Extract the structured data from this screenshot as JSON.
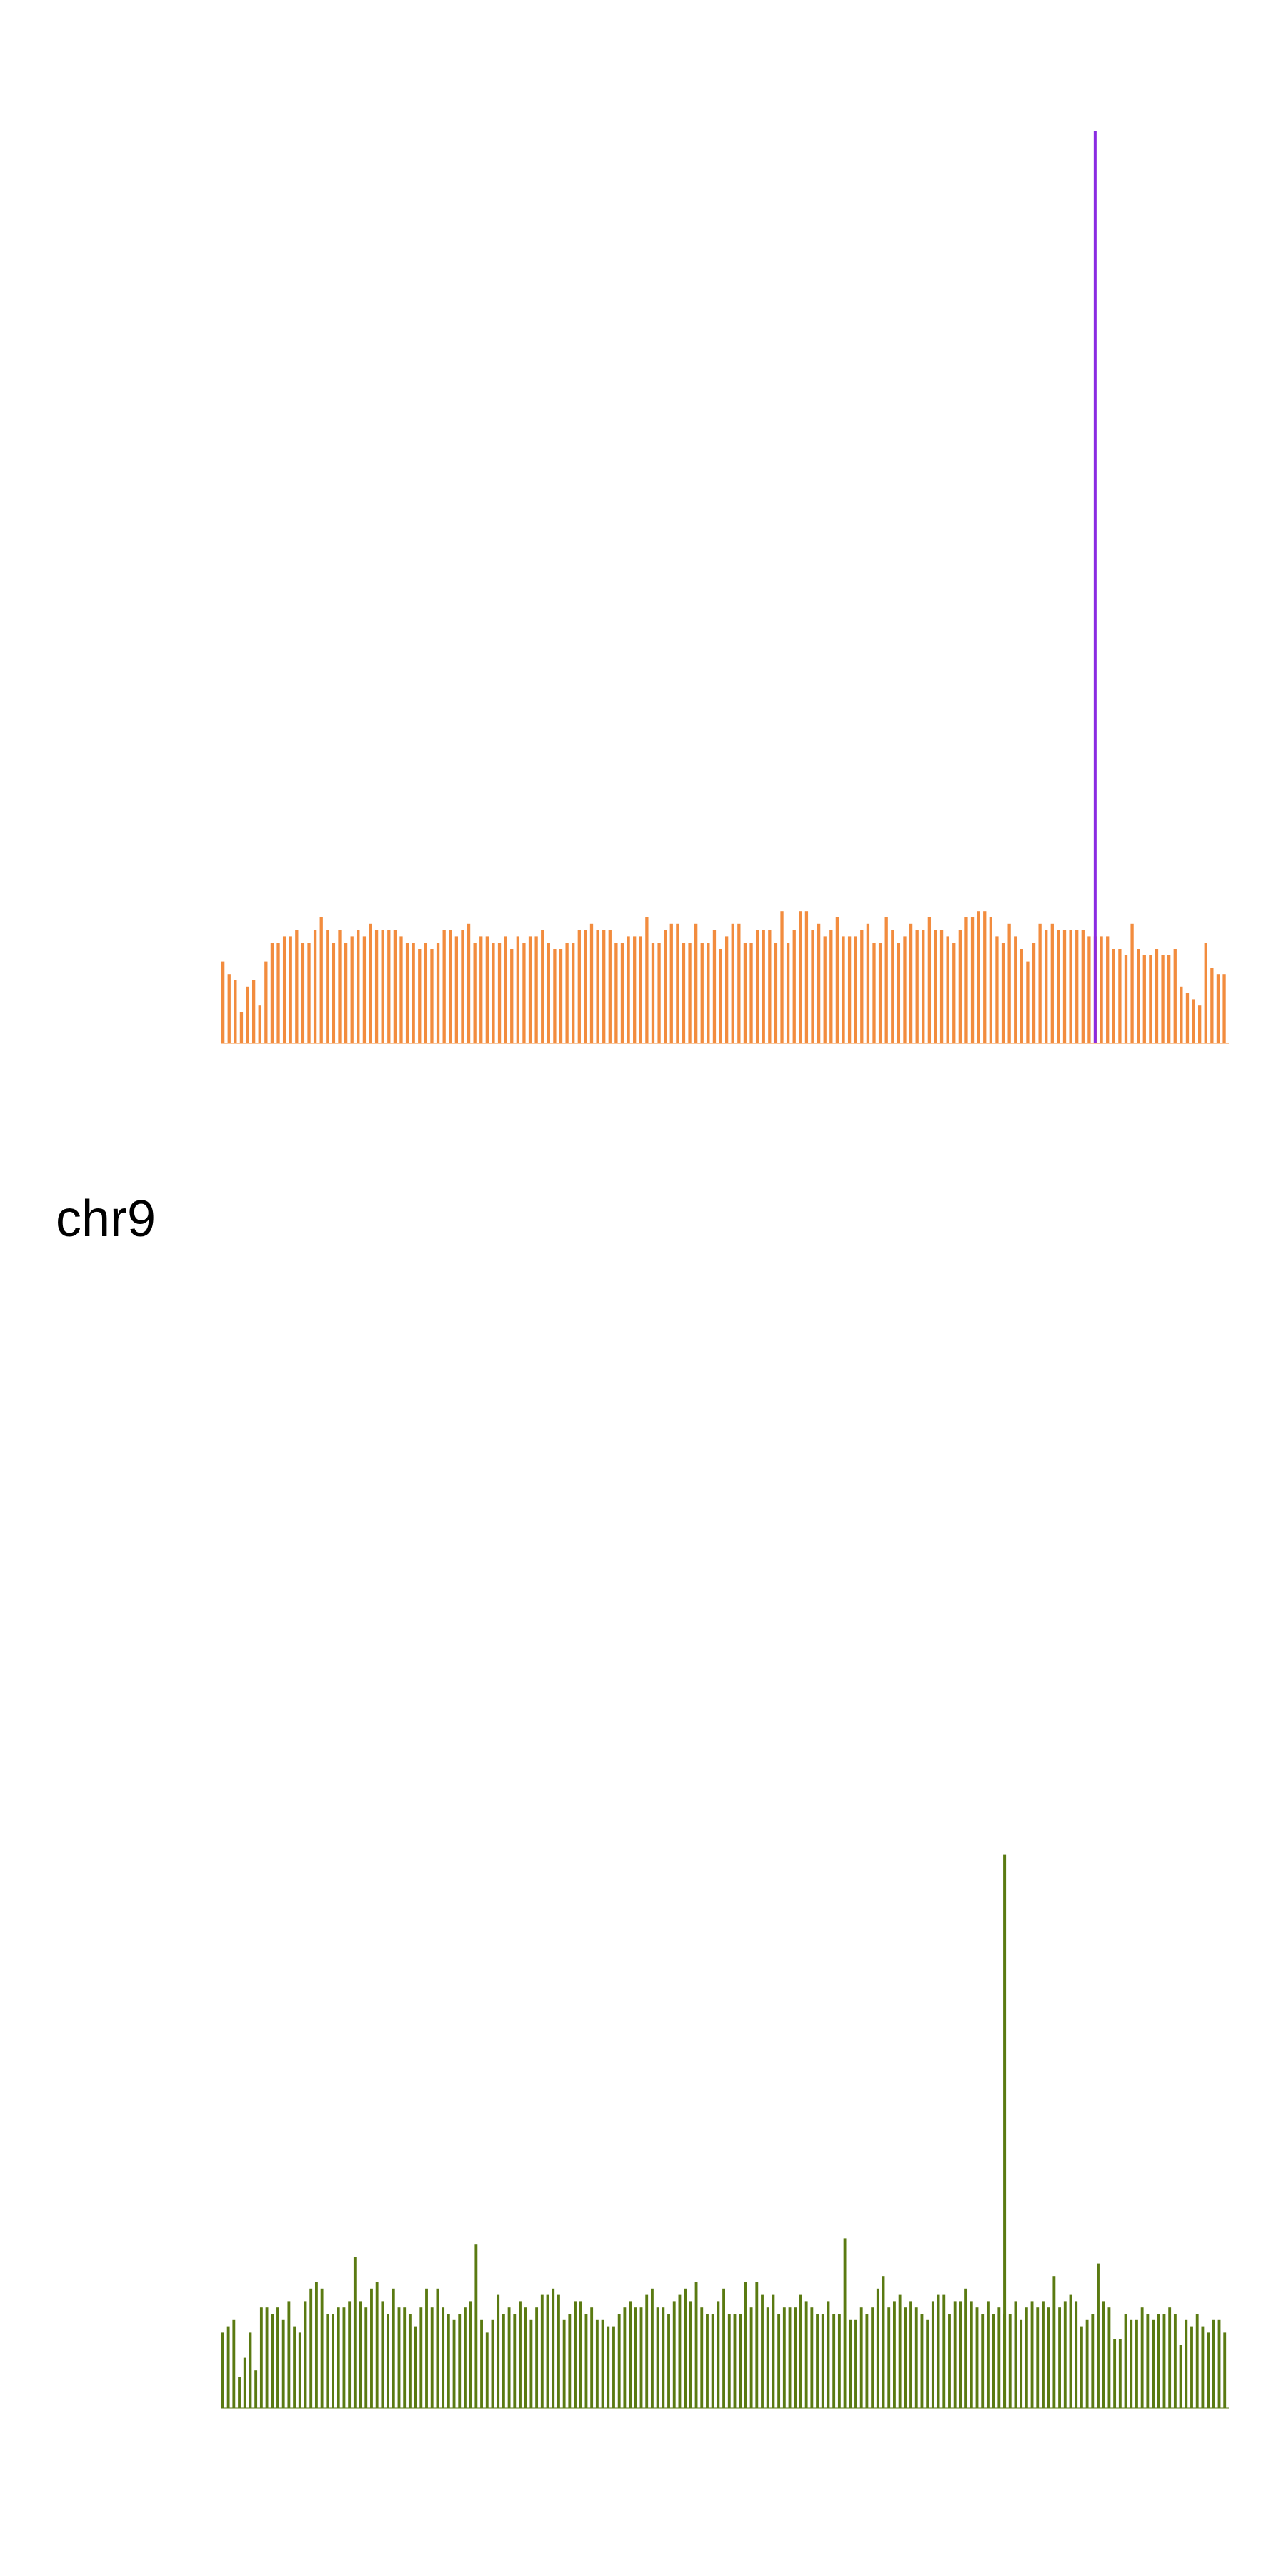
{
  "chart_data": [
    {
      "type": "bar",
      "label": "chr9",
      "series": [
        {
          "color": "#f28c3e",
          "values": [
            13,
            11,
            10,
            5,
            9,
            10,
            6,
            13,
            16,
            16,
            17,
            17,
            18,
            16,
            16,
            18,
            20,
            18,
            16,
            18,
            16,
            17,
            18,
            17,
            19,
            18,
            18,
            18,
            18,
            17,
            16,
            16,
            15,
            16,
            15,
            16,
            18,
            18,
            17,
            18,
            19,
            16,
            17,
            17,
            16,
            16,
            17,
            15,
            17,
            16,
            17,
            17,
            18,
            16,
            15,
            15,
            16,
            16,
            18,
            18,
            19,
            18,
            18,
            18,
            16,
            16,
            17,
            17,
            17,
            20,
            16,
            16,
            18,
            19,
            19,
            16,
            16,
            19,
            16,
            16,
            18,
            15,
            17,
            19,
            19,
            16,
            16,
            18,
            18,
            18,
            16,
            21,
            16,
            18,
            21,
            21,
            18,
            19,
            17,
            18,
            20,
            17,
            17,
            17,
            18,
            19,
            16,
            16,
            20,
            18,
            16,
            17,
            19,
            18,
            18,
            20,
            18,
            18,
            17,
            16,
            18,
            20,
            20,
            21,
            21,
            20,
            17,
            16,
            19,
            17,
            15,
            13,
            16,
            19,
            18,
            19,
            18,
            18,
            18,
            18,
            18,
            17,
            17,
            17,
            17,
            15,
            15,
            14,
            19,
            15,
            14,
            14,
            15,
            14,
            14,
            15,
            9,
            8,
            7,
            6,
            16,
            12,
            11,
            11
          ],
          "spike": {
            "index": 142,
            "value": 145,
            "color": "#8a2be2"
          }
        },
        {
          "color": "#5a7a12",
          "values": [
            12,
            13,
            14,
            5,
            8,
            12,
            6,
            16,
            16,
            15,
            16,
            14,
            17,
            13,
            12,
            17,
            19,
            20,
            19,
            15,
            15,
            16,
            16,
            17,
            24,
            17,
            16,
            19,
            20,
            17,
            15,
            19,
            16,
            16,
            15,
            13,
            16,
            19,
            16,
            19,
            16,
            15,
            14,
            15,
            16,
            17,
            26,
            14,
            12,
            14,
            18,
            15,
            16,
            15,
            17,
            16,
            14,
            16,
            18,
            18,
            19,
            18,
            14,
            15,
            17,
            17,
            15,
            16,
            14,
            14,
            13,
            13,
            15,
            16,
            17,
            16,
            16,
            18,
            19,
            16,
            16,
            15,
            17,
            18,
            19,
            17,
            20,
            16,
            15,
            15,
            17,
            19,
            15,
            15,
            15,
            20,
            16,
            20,
            18,
            16,
            18,
            15,
            16,
            16,
            16,
            18,
            17,
            16,
            15,
            15,
            17,
            15,
            15,
            27,
            14,
            14,
            16,
            15,
            16,
            19,
            21,
            16,
            17,
            18,
            16,
            17,
            16,
            15,
            14,
            17,
            18,
            18,
            15,
            17,
            17,
            19,
            17,
            16,
            15,
            17,
            15,
            16,
            15,
            15,
            17,
            14,
            16,
            17,
            16,
            17,
            16,
            21,
            16,
            17,
            18,
            17,
            13,
            14,
            15,
            23,
            17,
            16,
            11,
            11,
            15,
            14,
            14,
            16,
            15,
            14,
            15,
            15,
            16,
            15,
            10,
            14,
            13,
            15,
            13,
            12,
            14,
            14,
            12
          ],
          "spike": {
            "index": 142,
            "value": 88,
            "color": "#5a7a12"
          }
        }
      ]
    }
  ]
}
